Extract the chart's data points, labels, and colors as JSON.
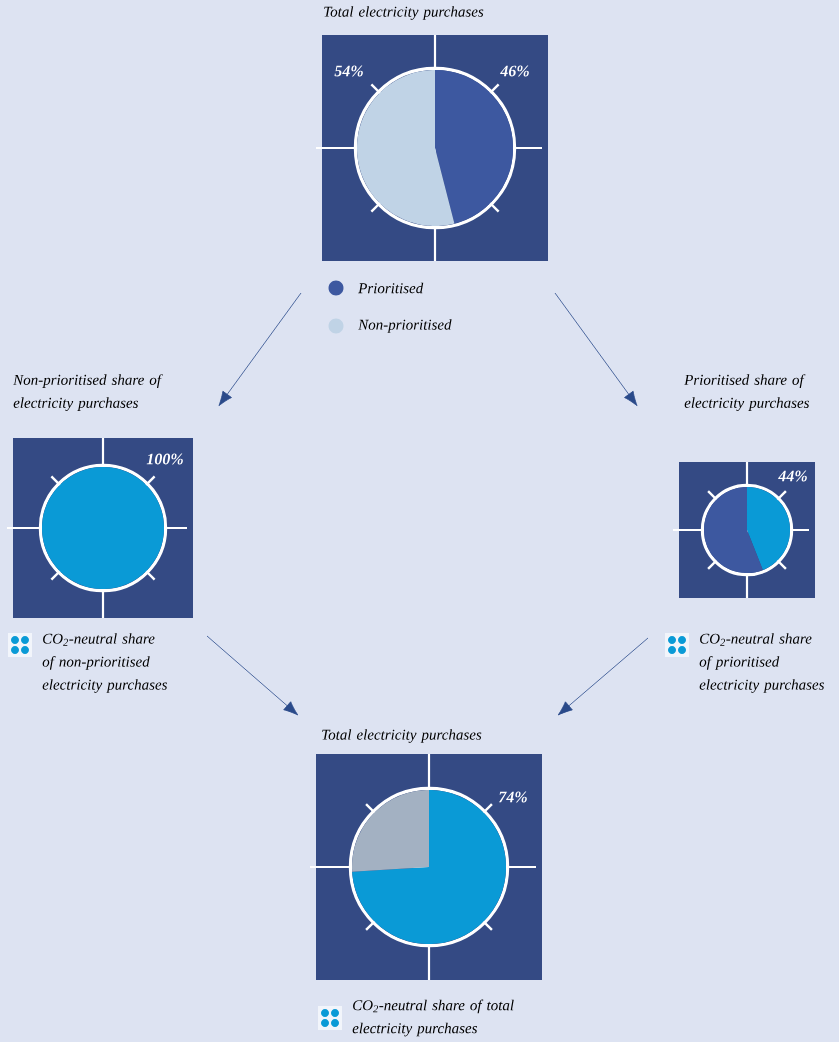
{
  "chart_data": [
    {
      "type": "pie",
      "title": "Total electricity purchases",
      "categories": [
        "Prioritised",
        "Non-prioritised"
      ],
      "values": [
        46,
        54
      ],
      "colors": [
        "#3d58a0",
        "#c0d3e6"
      ],
      "value_labels": [
        "46%",
        "54%"
      ],
      "legend": "bottom"
    },
    {
      "type": "pie",
      "title": "Non-prioritised share of electricity purchases",
      "categories": [
        "CO$_{2}$-neutral share of non-prioritised electricity purchases"
      ],
      "values": [
        100
      ],
      "colors": [
        "#0a9ad6"
      ],
      "value_labels": [
        "100%"
      ],
      "legend": "bottom"
    },
    {
      "type": "pie",
      "title": "Prioritised share of electricity purchases",
      "categories": [
        "CO$_{2}$-neutral share of prioritised electricity purchases",
        null
      ],
      "values": [
        44,
        56
      ],
      "colors": [
        "#0a9ad6",
        "#3d58a0"
      ],
      "value_labels": [
        "44%",
        null
      ],
      "legend": "bottom"
    },
    {
      "type": "pie",
      "title": "Total electricity purchases",
      "categories": [
        "CO$_{2}$-neutral share of total electricity purchases",
        null
      ],
      "values": [
        74,
        26
      ],
      "colors": [
        "#0a9ad6",
        "#a3b1c2"
      ],
      "value_labels": [
        "74%",
        null
      ],
      "legend": "bottom"
    }
  ]
}
